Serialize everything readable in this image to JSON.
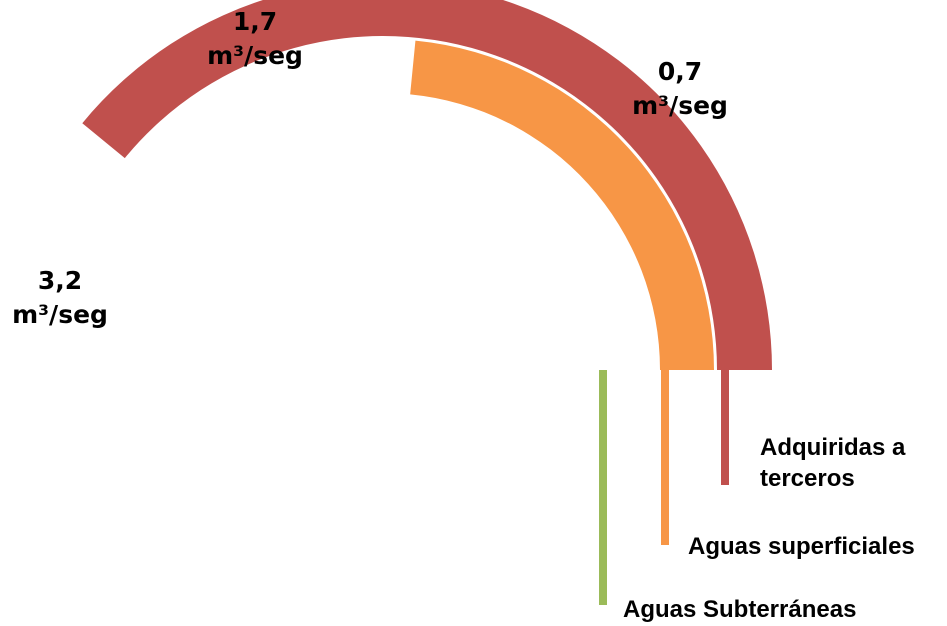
{
  "chart_data": {
    "type": "radial-bar",
    "unit": "m³/seg",
    "series": [
      {
        "name": "Aguas Subterráneas",
        "value": 3.2,
        "label": "3,2 m³/seg",
        "color": "#9BBB59"
      },
      {
        "name": "Aguas superficiales",
        "value": 1.7,
        "label": "1,7 m³/seg",
        "color": "#F79646"
      },
      {
        "name": "Adquiridas a terceros",
        "value": 0.7,
        "label": "0,7 m³/seg",
        "color": "#C0504D"
      }
    ]
  }
}
